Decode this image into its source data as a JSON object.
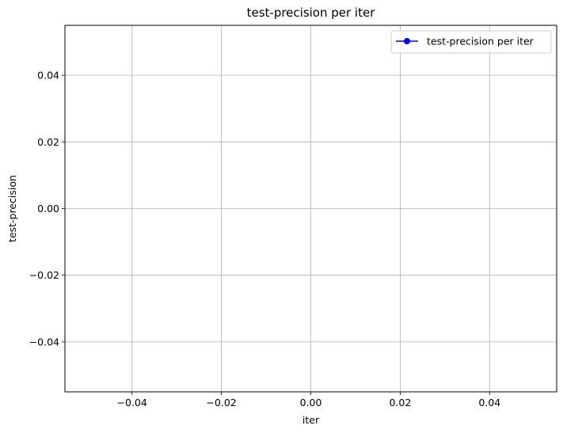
{
  "chart_data": {
    "type": "line",
    "title": "test-precision per iter",
    "xlabel": "iter",
    "ylabel": "test-precision",
    "xlim": [
      -0.055,
      0.055
    ],
    "ylim": [
      -0.055,
      0.055
    ],
    "xticks": [
      -0.04,
      -0.02,
      0.0,
      0.02,
      0.04
    ],
    "xtick_labels": [
      "−0.04",
      "−0.02",
      "0.00",
      "0.02",
      "0.04"
    ],
    "yticks": [
      -0.04,
      -0.02,
      0.0,
      0.02,
      0.04
    ],
    "ytick_labels": [
      "−0.04",
      "−0.02",
      "0.00",
      "0.02",
      "0.04"
    ],
    "grid": true,
    "legend_placement": "top-right",
    "series": [
      {
        "name": "test-precision per iter",
        "color": "#0000ff",
        "marker": "circle",
        "x": [],
        "y": []
      }
    ]
  }
}
